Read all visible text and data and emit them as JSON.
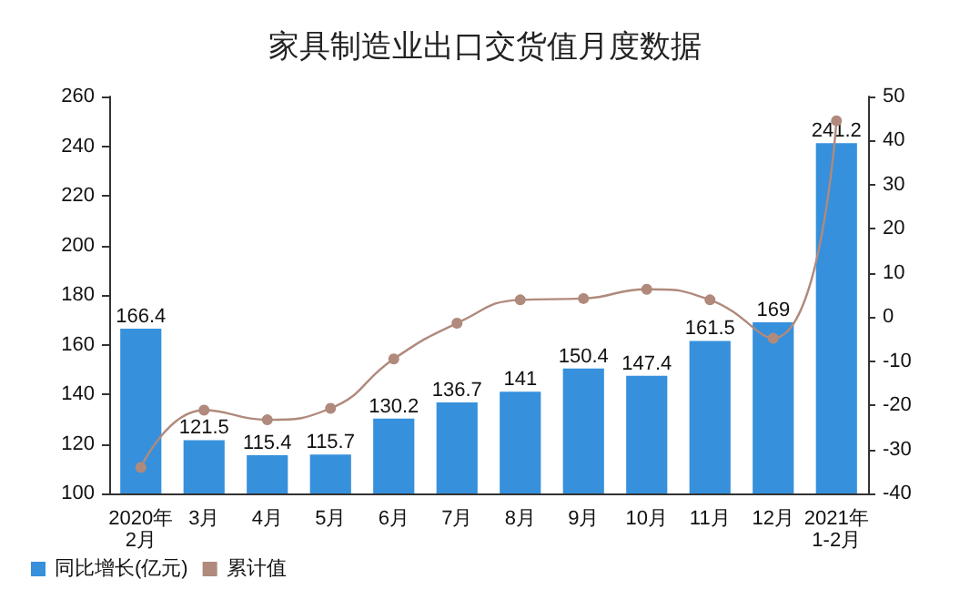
{
  "chart_data": {
    "type": "bar",
    "title": "家具制造业出口交货值月度数据",
    "categories": [
      "2020年\n2月",
      "3月",
      "4月",
      "5月",
      "6月",
      "7月",
      "8月",
      "9月",
      "10月",
      "11月",
      "12月",
      "2021年\n1-2月"
    ],
    "series": [
      {
        "name": "同比增长(亿元)",
        "color": "#3690dc",
        "values": [
          166.4,
          121.5,
          115.4,
          115.7,
          130.2,
          136.7,
          141,
          150.4,
          147.4,
          161.5,
          169,
          241.2
        ],
        "value_labels": [
          "166.4",
          "121.5",
          "115.4",
          "115.7",
          "130.2",
          "136.7",
          "141",
          "150.4",
          "147.4",
          "161.5",
          "169",
          "241.2"
        ]
      },
      {
        "name": "累计值",
        "type": "line",
        "axis": "y2",
        "color": "#b08a7c",
        "values": [
          -34.1,
          -21.1,
          -23.3,
          -20.7,
          -9.5,
          -1.4,
          3.9,
          4.2,
          6.3,
          3.9,
          -4.8,
          44.5
        ]
      }
    ],
    "ylim": [
      100,
      260
    ],
    "yticks": [
      100,
      120,
      140,
      160,
      180,
      200,
      220,
      240,
      260
    ],
    "y2lim": [
      -40,
      50
    ],
    "y2ticks": [
      -40,
      -30,
      -20,
      -10,
      0,
      10,
      20,
      30,
      40,
      50
    ],
    "grid": false,
    "legend": "bottom left",
    "marker": "circle"
  }
}
